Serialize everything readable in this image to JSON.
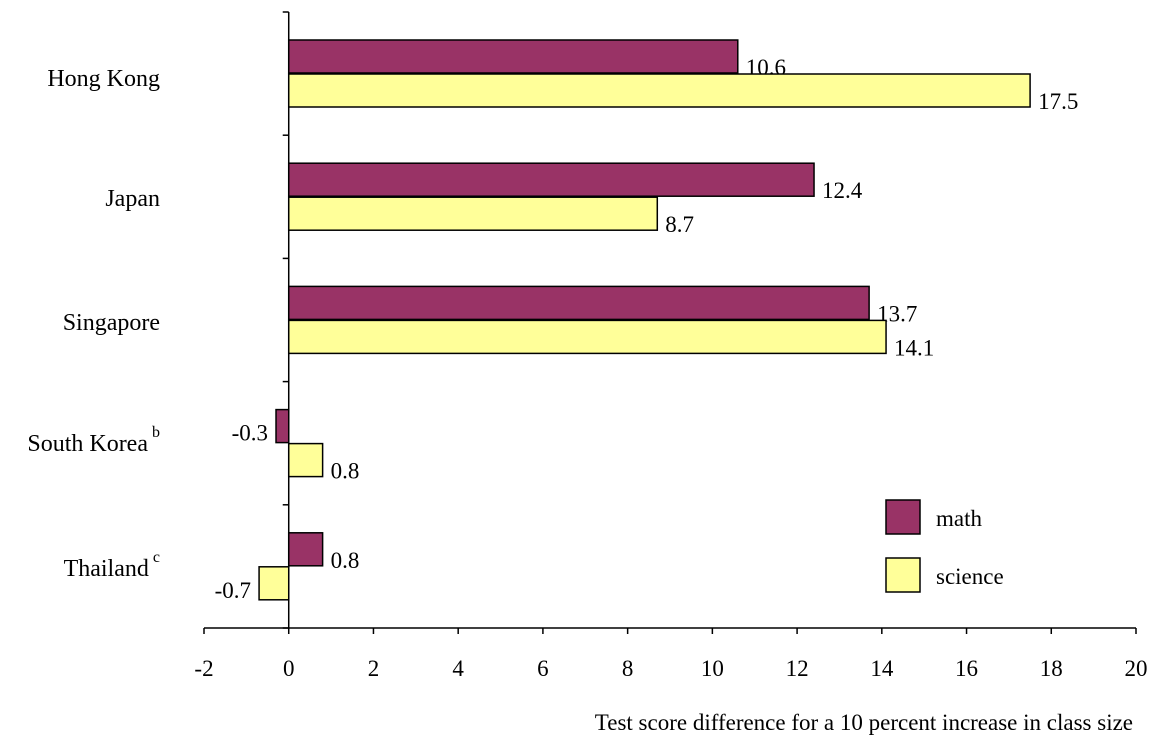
{
  "chart_data": {
    "type": "bar",
    "orientation": "horizontal",
    "categories": [
      {
        "name": "Hong Kong",
        "sup": ""
      },
      {
        "name": "Japan",
        "sup": ""
      },
      {
        "name": "Singapore",
        "sup": ""
      },
      {
        "name": "South Korea",
        "sup": "b"
      },
      {
        "name": "Thailand",
        "sup": "c"
      }
    ],
    "series": [
      {
        "name": "math",
        "color": "#993366",
        "values": [
          10.6,
          12.4,
          13.7,
          -0.3,
          0.8
        ],
        "labels": [
          "10.6",
          "12.4",
          "13.7",
          "-0.3",
          "0.8"
        ]
      },
      {
        "name": "science",
        "color": "#ffff99",
        "values": [
          17.5,
          8.7,
          14.1,
          0.8,
          -0.7
        ],
        "labels": [
          "17.5",
          "8.7",
          "14.1",
          "0.8",
          "-0.7"
        ]
      }
    ],
    "xlim": [
      -2,
      20
    ],
    "xticks": [
      -2,
      0,
      2,
      4,
      6,
      8,
      10,
      12,
      14,
      16,
      18,
      20
    ],
    "xlabel": "Test score difference for a 10 percent increase in class size",
    "legend_position": "bottom-right",
    "grid": false
  }
}
